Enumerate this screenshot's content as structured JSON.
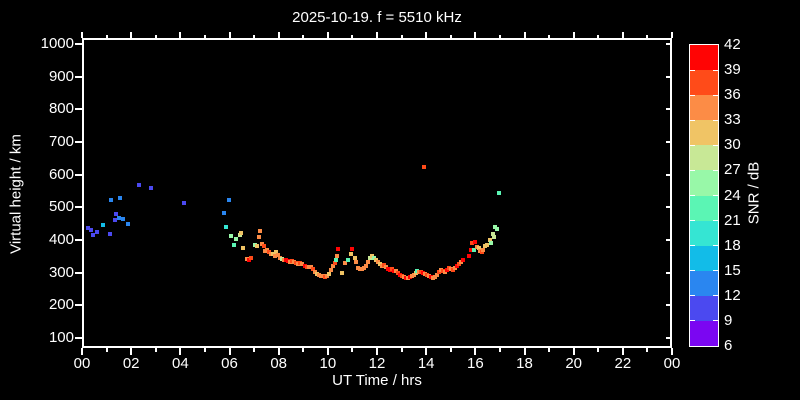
{
  "title": "2025-10-19. f = 5510 kHz",
  "x_axis": {
    "label": "UT Time / hrs",
    "tick_labels": [
      "00",
      "02",
      "04",
      "06",
      "08",
      "10",
      "12",
      "14",
      "16",
      "18",
      "20",
      "22",
      "00"
    ],
    "range": [
      0,
      24
    ]
  },
  "y_axis": {
    "label": "Virtual height / km",
    "tick_labels": [
      100,
      200,
      300,
      400,
      500,
      600,
      700,
      800,
      900,
      1000
    ],
    "range": [
      70,
      1018
    ]
  },
  "colorbar": {
    "label": "SNR / dB",
    "tick_labels": [
      6,
      9,
      12,
      15,
      18,
      21,
      24,
      27,
      30,
      33,
      36,
      39,
      42
    ],
    "colors": [
      "#7B06F2",
      "#4B49F0",
      "#2A86F0",
      "#12BCE8",
      "#35E5D3",
      "#5BF5B4",
      "#98F8A8",
      "#C8E896",
      "#F0C465",
      "#FC8C46",
      "#FF4B19",
      "#FF0404"
    ]
  },
  "background_color": "#000000",
  "foreground_color": "#FFFFFF",
  "chart_data": {
    "type": "scatter",
    "title": "2025-10-19. f = 5510 kHz",
    "xlabel": "UT Time / hrs",
    "ylabel": "Virtual height / km",
    "x_range": [
      0,
      24
    ],
    "y_range": [
      70,
      1018
    ],
    "grid": false,
    "legend": "colorbar-right",
    "color_scale": {
      "label": "SNR / dB",
      "min": 6,
      "max": 42,
      "step": 3
    },
    "marker": "square",
    "series": [
      {
        "name": "ionospheric-echoes",
        "point_format": [
          "ut_hour",
          "virtual_height_km",
          "snr_db"
        ],
        "points": [
          [
            0.24,
            437,
            10
          ],
          [
            0.37,
            431,
            10
          ],
          [
            0.45,
            415,
            10
          ],
          [
            0.61,
            424,
            10
          ],
          [
            0.85,
            446,
            16
          ],
          [
            1.14,
            418,
            10
          ],
          [
            1.18,
            522,
            13
          ],
          [
            1.34,
            461,
            10
          ],
          [
            1.38,
            480,
            10
          ],
          [
            1.5,
            467,
            13
          ],
          [
            1.55,
            529,
            13
          ],
          [
            1.67,
            464,
            13
          ],
          [
            1.87,
            449,
            13
          ],
          [
            2.32,
            568,
            10
          ],
          [
            2.81,
            559,
            10
          ],
          [
            4.15,
            513,
            10
          ],
          [
            5.78,
            483,
            13
          ],
          [
            5.86,
            440,
            19
          ],
          [
            5.98,
            522,
            13
          ],
          [
            6.06,
            412,
            25
          ],
          [
            6.18,
            385,
            22
          ],
          [
            6.26,
            403,
            25
          ],
          [
            6.43,
            415,
            28
          ],
          [
            6.47,
            421,
            31
          ],
          [
            6.55,
            375,
            31
          ],
          [
            6.71,
            342,
            34
          ],
          [
            6.79,
            339,
            40
          ],
          [
            6.87,
            345,
            37
          ],
          [
            7.04,
            385,
            25
          ],
          [
            7.12,
            382,
            31
          ],
          [
            7.2,
            409,
            34
          ],
          [
            7.24,
            427,
            34
          ],
          [
            7.32,
            388,
            34
          ],
          [
            7.4,
            382,
            37
          ],
          [
            7.44,
            366,
            34
          ],
          [
            7.53,
            369,
            34
          ],
          [
            7.61,
            363,
            37
          ],
          [
            7.69,
            357,
            34
          ],
          [
            7.77,
            357,
            31
          ],
          [
            7.85,
            351,
            34
          ],
          [
            7.89,
            363,
            31
          ],
          [
            7.97,
            354,
            34
          ],
          [
            8.06,
            345,
            34
          ],
          [
            8.14,
            342,
            28
          ],
          [
            8.22,
            339,
            34
          ],
          [
            8.3,
            339,
            40
          ],
          [
            8.38,
            336,
            40
          ],
          [
            8.46,
            333,
            34
          ],
          [
            8.54,
            336,
            37
          ],
          [
            8.63,
            333,
            34
          ],
          [
            8.71,
            330,
            37
          ],
          [
            8.79,
            327,
            34
          ],
          [
            8.87,
            330,
            37
          ],
          [
            8.95,
            327,
            34
          ],
          [
            9.07,
            321,
            40
          ],
          [
            9.15,
            318,
            37
          ],
          [
            9.23,
            318,
            34
          ],
          [
            9.31,
            318,
            34
          ],
          [
            9.4,
            312,
            37
          ],
          [
            9.48,
            302,
            34
          ],
          [
            9.56,
            296,
            31
          ],
          [
            9.64,
            293,
            34
          ],
          [
            9.72,
            290,
            34
          ],
          [
            9.8,
            290,
            34
          ],
          [
            9.88,
            287,
            37
          ],
          [
            9.97,
            290,
            34
          ],
          [
            10.05,
            296,
            31
          ],
          [
            10.13,
            308,
            34
          ],
          [
            10.21,
            321,
            34
          ],
          [
            10.29,
            330,
            37
          ],
          [
            10.33,
            339,
            22
          ],
          [
            10.37,
            351,
            34
          ],
          [
            10.41,
            372,
            40
          ],
          [
            10.58,
            299,
            31
          ],
          [
            10.7,
            330,
            34
          ],
          [
            10.82,
            339,
            22
          ],
          [
            10.94,
            357,
            31
          ],
          [
            10.98,
            372,
            40
          ],
          [
            11.11,
            345,
            31
          ],
          [
            11.15,
            333,
            34
          ],
          [
            11.23,
            314,
            34
          ],
          [
            11.31,
            311,
            34
          ],
          [
            11.39,
            311,
            34
          ],
          [
            11.47,
            314,
            34
          ],
          [
            11.55,
            320,
            34
          ],
          [
            11.63,
            333,
            34
          ],
          [
            11.72,
            345,
            28
          ],
          [
            11.8,
            351,
            31
          ],
          [
            11.88,
            345,
            25
          ],
          [
            11.96,
            339,
            31
          ],
          [
            12.04,
            333,
            34
          ],
          [
            12.12,
            327,
            31
          ],
          [
            12.2,
            320,
            34
          ],
          [
            12.28,
            324,
            37
          ],
          [
            12.37,
            317,
            34
          ],
          [
            12.45,
            311,
            40
          ],
          [
            12.53,
            308,
            40
          ],
          [
            12.61,
            311,
            37
          ],
          [
            12.69,
            305,
            40
          ],
          [
            12.77,
            305,
            34
          ],
          [
            12.85,
            299,
            37
          ],
          [
            12.94,
            293,
            40
          ],
          [
            13.02,
            290,
            37
          ],
          [
            13.1,
            287,
            34
          ],
          [
            13.18,
            284,
            40
          ],
          [
            13.26,
            284,
            34
          ],
          [
            13.34,
            287,
            40
          ],
          [
            13.42,
            290,
            34
          ],
          [
            13.5,
            293,
            34
          ],
          [
            13.59,
            299,
            31
          ],
          [
            13.63,
            305,
            22
          ],
          [
            13.71,
            302,
            34
          ],
          [
            13.79,
            302,
            37
          ],
          [
            13.87,
            299,
            40
          ],
          [
            13.91,
            623,
            37
          ],
          [
            13.95,
            296,
            34
          ],
          [
            14.03,
            293,
            37
          ],
          [
            14.11,
            290,
            34
          ],
          [
            14.2,
            287,
            40
          ],
          [
            14.28,
            284,
            34
          ],
          [
            14.36,
            287,
            34
          ],
          [
            14.44,
            293,
            34
          ],
          [
            14.52,
            302,
            37
          ],
          [
            14.6,
            308,
            34
          ],
          [
            14.68,
            305,
            37
          ],
          [
            14.76,
            302,
            34
          ],
          [
            14.85,
            308,
            40
          ],
          [
            14.93,
            314,
            37
          ],
          [
            15.01,
            311,
            34
          ],
          [
            15.09,
            308,
            37
          ],
          [
            15.17,
            314,
            34
          ],
          [
            15.25,
            320,
            40
          ],
          [
            15.33,
            327,
            37
          ],
          [
            15.42,
            333,
            34
          ],
          [
            15.5,
            339,
            40
          ],
          [
            15.74,
            351,
            40
          ],
          [
            15.82,
            369,
            40
          ],
          [
            15.87,
            391,
            37
          ],
          [
            15.95,
            369,
            22
          ],
          [
            15.99,
            394,
            40
          ],
          [
            16.07,
            379,
            34
          ],
          [
            16.15,
            376,
            31
          ],
          [
            16.19,
            366,
            34
          ],
          [
            16.27,
            363,
            37
          ],
          [
            16.31,
            369,
            34
          ],
          [
            16.39,
            382,
            31
          ],
          [
            16.48,
            385,
            31
          ],
          [
            16.6,
            400,
            31
          ],
          [
            16.64,
            391,
            25
          ],
          [
            16.72,
            418,
            28
          ],
          [
            16.76,
            409,
            28
          ],
          [
            16.8,
            440,
            25
          ],
          [
            16.88,
            434,
            25
          ],
          [
            16.96,
            544,
            22
          ]
        ]
      }
    ]
  }
}
